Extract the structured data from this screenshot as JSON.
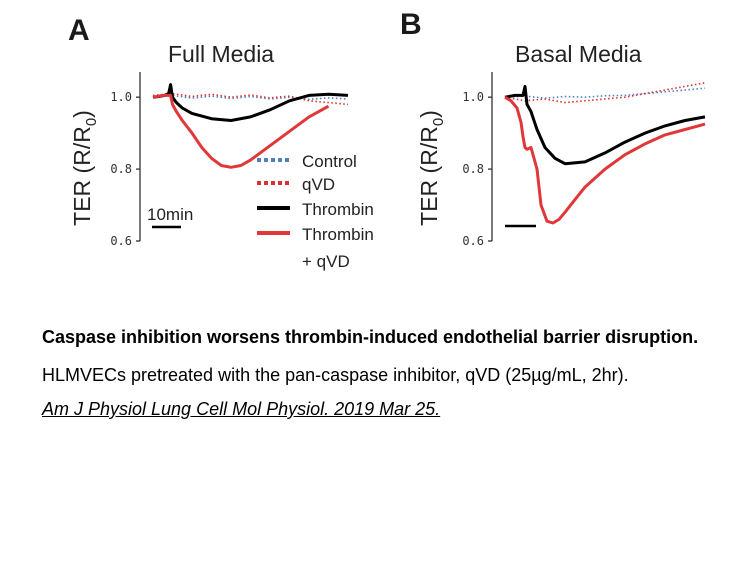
{
  "chart_data": [
    {
      "type": "line",
      "panel_label": "A",
      "title": "Full Media",
      "ylabel": "TER (R/R",
      "ylabel_sub": "0",
      "ylabel_close": ")",
      "xlabel": "",
      "ylim": [
        0.6,
        1.07
      ],
      "xlim": [
        0,
        100
      ],
      "yticks": [
        {
          "value": 1.0,
          "label": "1.0"
        },
        {
          "value": 0.8,
          "label": "0.8"
        },
        {
          "value": 0.6,
          "label": "0.6"
        }
      ],
      "scale_bar": {
        "label": "10min",
        "x_start": 0,
        "x_end": 15,
        "y": 0.635
      },
      "legend": [
        {
          "label": "Control",
          "color": "#4f7fbf",
          "style": "dotted"
        },
        {
          "label": "qVD",
          "color": "#d93030",
          "style": "dotted"
        },
        {
          "label": "Thrombin",
          "color": "#000000",
          "style": "solid"
        },
        {
          "label": "Thrombin",
          "label2": "+ qVD",
          "color": "#e03838",
          "style": "solid"
        }
      ],
      "series": [
        {
          "name": "Control",
          "color": "#4f7fbf",
          "style": "dotted",
          "x": [
            0,
            10,
            20,
            30,
            40,
            50,
            60,
            70,
            80,
            90,
            100
          ],
          "y": [
            1.0,
            1.005,
            0.997,
            1.003,
            0.996,
            1.002,
            0.995,
            1.0,
            0.994,
            0.998,
            0.995
          ]
        },
        {
          "name": "qVD",
          "color": "#d93030",
          "style": "dotted",
          "x": [
            0,
            10,
            20,
            30,
            40,
            50,
            60,
            70,
            80,
            90,
            100
          ],
          "y": [
            1.005,
            1.01,
            1.002,
            1.008,
            1.0,
            1.006,
            0.998,
            1.003,
            0.99,
            0.985,
            0.98
          ]
        },
        {
          "name": "Thrombin",
          "color": "#000000",
          "style": "solid",
          "x": [
            0,
            3,
            6,
            8,
            9,
            10,
            12,
            15,
            20,
            30,
            40,
            50,
            60,
            70,
            80,
            90,
            100
          ],
          "y": [
            1.0,
            1.002,
            1.005,
            1.01,
            1.035,
            1.0,
            0.985,
            0.97,
            0.955,
            0.94,
            0.935,
            0.945,
            0.965,
            0.99,
            1.005,
            1.008,
            1.005
          ]
        },
        {
          "name": "Thrombin + qVD",
          "color": "#e03838",
          "style": "solid",
          "x": [
            0,
            5,
            9,
            10,
            12,
            15,
            20,
            25,
            30,
            35,
            40,
            45,
            50,
            60,
            70,
            80,
            90
          ],
          "y": [
            1.0,
            1.005,
            1.005,
            0.98,
            0.96,
            0.935,
            0.9,
            0.86,
            0.83,
            0.81,
            0.805,
            0.81,
            0.825,
            0.865,
            0.905,
            0.945,
            0.975
          ]
        }
      ]
    },
    {
      "type": "line",
      "panel_label": "B",
      "title": "Basal Media",
      "ylabel": "TER (R/R",
      "ylabel_sub": "0",
      "ylabel_close": ")",
      "xlabel": "",
      "ylim": [
        0.6,
        1.07
      ],
      "xlim": [
        0,
        100
      ],
      "yticks": [
        {
          "value": 1.0,
          "label": "1.0"
        },
        {
          "value": 0.8,
          "label": "0.8"
        },
        {
          "value": 0.6,
          "label": "0.6"
        }
      ],
      "scale_bar": {
        "label": "",
        "x_start": 0,
        "x_end": 15,
        "y": 0.64
      },
      "legend": [],
      "series": [
        {
          "name": "Control",
          "color": "#4f7fbf",
          "style": "dotted",
          "x": [
            0,
            10,
            20,
            30,
            40,
            50,
            60,
            70,
            80,
            90,
            100
          ],
          "y": [
            1.0,
            1.003,
            0.997,
            1.002,
            1.0,
            1.004,
            1.005,
            1.01,
            1.015,
            1.02,
            1.025
          ]
        },
        {
          "name": "qVD",
          "color": "#d93030",
          "style": "dotted",
          "x": [
            0,
            10,
            20,
            30,
            40,
            50,
            60,
            70,
            80,
            90,
            100
          ],
          "y": [
            1.0,
            0.99,
            0.995,
            0.985,
            0.99,
            0.995,
            1.0,
            1.01,
            1.02,
            1.03,
            1.04
          ]
        },
        {
          "name": "Thrombin",
          "color": "#000000",
          "style": "solid",
          "x": [
            0,
            5,
            9,
            10,
            11,
            13,
            16,
            20,
            25,
            30,
            40,
            50,
            60,
            70,
            80,
            90,
            100
          ],
          "y": [
            1.0,
            1.005,
            1.005,
            1.03,
            0.98,
            0.96,
            0.91,
            0.86,
            0.83,
            0.815,
            0.82,
            0.845,
            0.875,
            0.9,
            0.92,
            0.935,
            0.945
          ]
        },
        {
          "name": "Thrombin + qVD",
          "color": "#e03838",
          "style": "solid",
          "x": [
            0,
            3,
            6,
            8,
            9,
            10,
            11,
            13,
            16,
            18,
            21,
            24,
            27,
            30,
            35,
            40,
            50,
            60,
            70,
            80,
            90,
            100
          ],
          "y": [
            1.0,
            0.99,
            0.97,
            0.93,
            0.89,
            0.86,
            0.855,
            0.86,
            0.8,
            0.7,
            0.655,
            0.65,
            0.66,
            0.68,
            0.715,
            0.75,
            0.8,
            0.84,
            0.87,
            0.895,
            0.91,
            0.925
          ]
        }
      ]
    }
  ],
  "caption": {
    "title": "Caspase inhibition worsens thrombin-induced endothelial barrier disruption.",
    "description": "HLMVECs pretreated with the pan-caspase inhibitor, qVD (25µg/mL, 2hr).",
    "citation": "Am J Physiol Lung Cell Mol Physiol. 2019 Mar 25."
  }
}
